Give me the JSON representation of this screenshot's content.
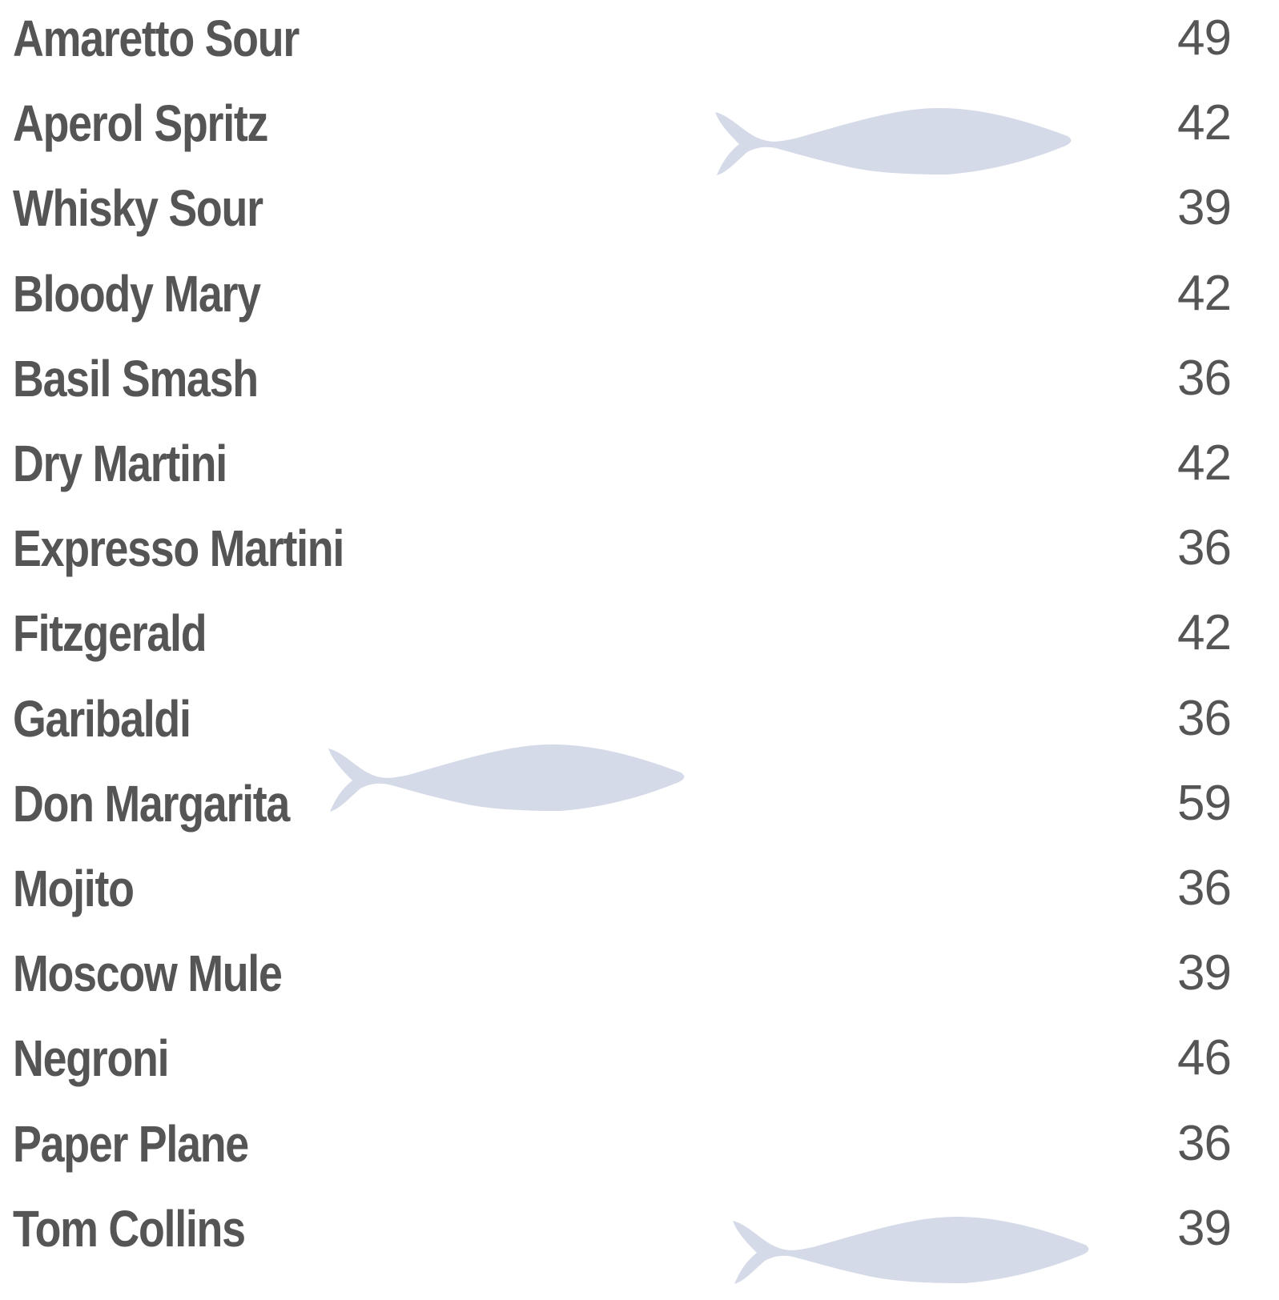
{
  "menu": {
    "items": [
      {
        "name": "Amaretto Sour",
        "price": 49
      },
      {
        "name": "Aperol Spritz",
        "price": 42
      },
      {
        "name": "Whisky Sour",
        "price": 39
      },
      {
        "name": "Bloody Mary",
        "price": 42
      },
      {
        "name": "Basil Smash",
        "price": 36
      },
      {
        "name": "Dry Martini",
        "price": 42
      },
      {
        "name": "Expresso Martini",
        "price": 36
      },
      {
        "name": "Fitzgerald",
        "price": 42
      },
      {
        "name": "Garibaldi",
        "price": 36
      },
      {
        "name": "Don Margarita",
        "price": 59
      },
      {
        "name": "Mojito",
        "price": 36
      },
      {
        "name": "Moscow Mule",
        "price": 39
      },
      {
        "name": "Negroni",
        "price": 46
      },
      {
        "name": "Paper Plane",
        "price": 36
      },
      {
        "name": "Tom Collins",
        "price": 39
      }
    ]
  }
}
